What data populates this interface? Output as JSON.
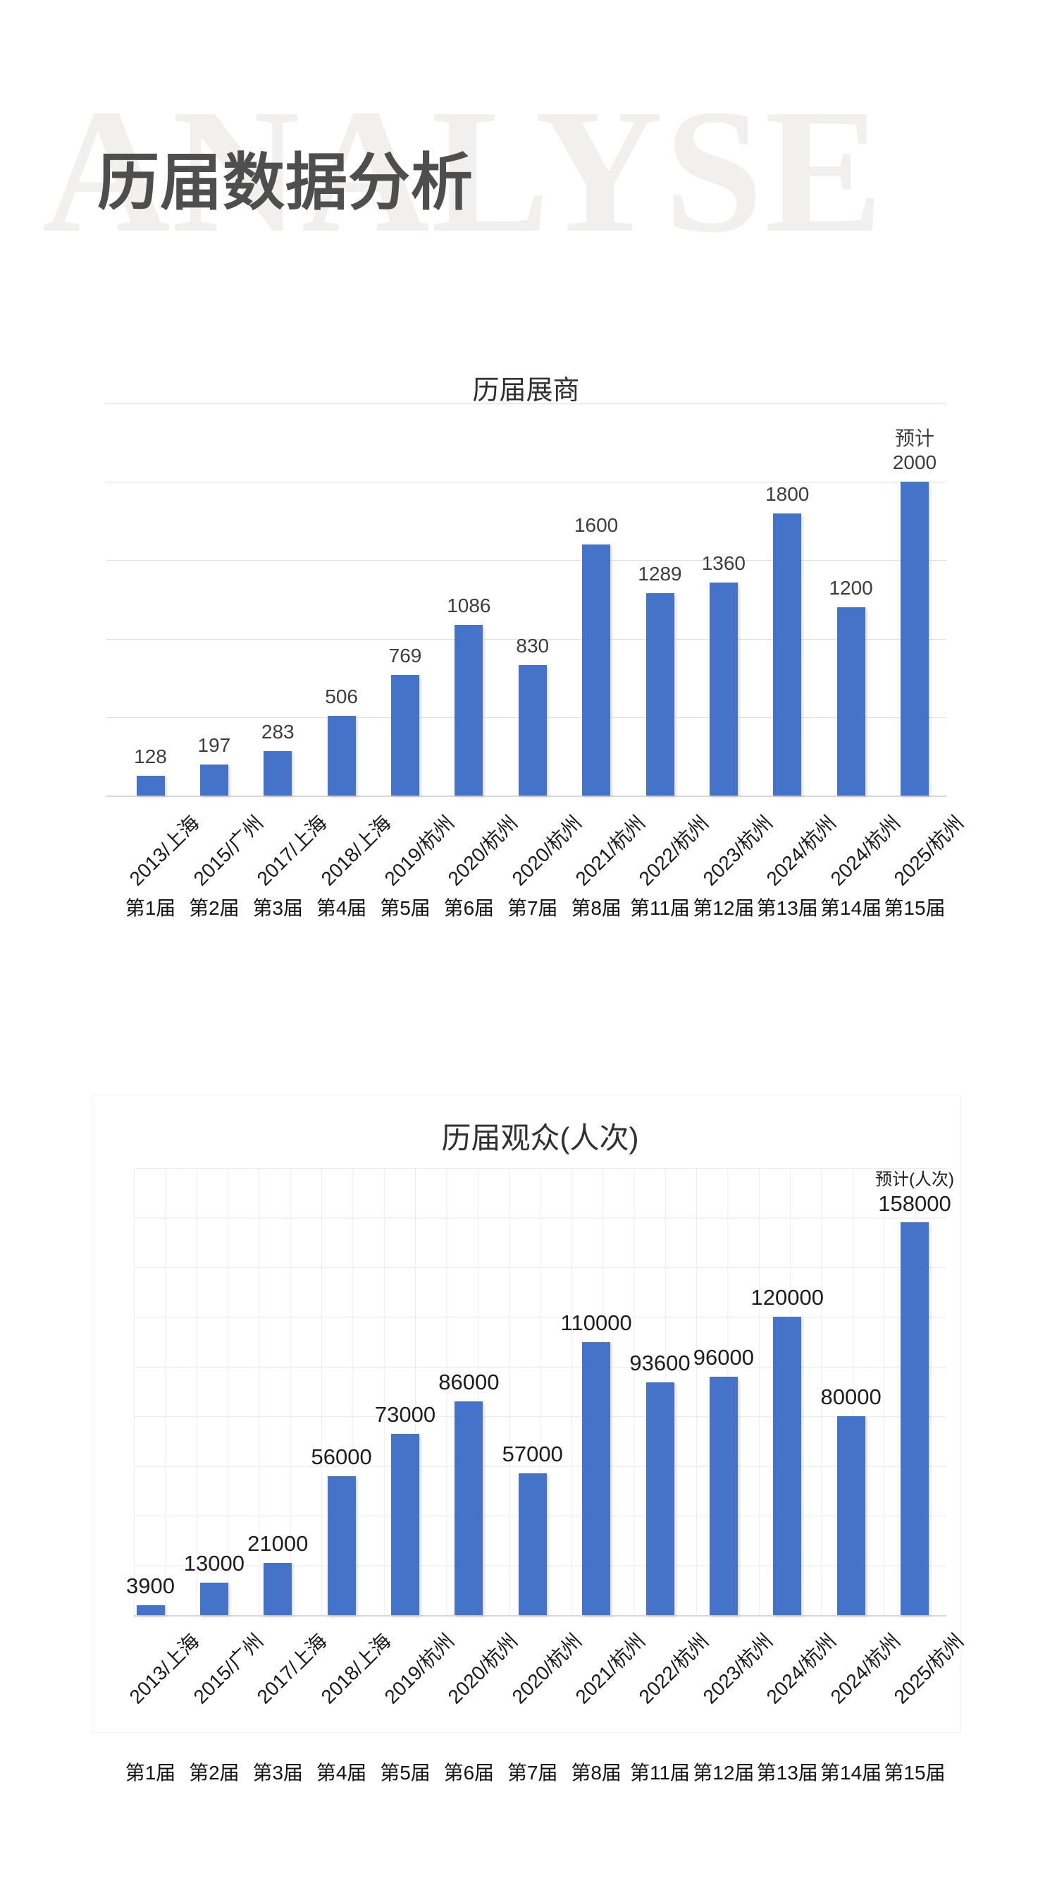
{
  "page": {
    "watermark": "ANALYSE",
    "title": "历届数据分析"
  },
  "chart_data": [
    {
      "type": "bar",
      "title": "历届展商",
      "legend": "none",
      "grid": "horizontal-only",
      "ylim": [
        0,
        2500
      ],
      "grid_step": 500,
      "bar_color": "#4573c9",
      "categories": [
        "第1届",
        "第2届",
        "第3届",
        "第4届",
        "第5届",
        "第6届",
        "第7届",
        "第8届",
        "第11届",
        "第12届",
        "第13届",
        "第14届",
        "第15届"
      ],
      "editions": [
        "2013/上海",
        "2015/广州",
        "2017/上海",
        "2018/上海",
        "2019/杭州",
        "2020/杭州",
        "2020/杭州",
        "2021/杭州",
        "2022/杭州",
        "2023/杭州",
        "2024/杭州",
        "2024/杭州",
        "2025/杭州"
      ],
      "values": [
        128,
        197,
        283,
        506,
        769,
        1086,
        830,
        1600,
        1289,
        1360,
        1800,
        1200,
        2000
      ],
      "data_labels": [
        [
          "128"
        ],
        [
          "197"
        ],
        [
          "283"
        ],
        [
          "506"
        ],
        [
          "769"
        ],
        [
          "1086"
        ],
        [
          "830"
        ],
        [
          "1600"
        ],
        [
          "1289"
        ],
        [
          "1360"
        ],
        [
          "1800"
        ],
        [
          "1200"
        ],
        [
          "预计",
          "2000"
        ]
      ]
    },
    {
      "type": "bar",
      "title": "历届观众(人次)",
      "legend": "none",
      "grid": "full",
      "ylim": [
        0,
        180000
      ],
      "grid_step": 20000,
      "bar_color": "#4573c9",
      "categories": [
        "第1届",
        "第2届",
        "第3届",
        "第4届",
        "第5届",
        "第6届",
        "第7届",
        "第8届",
        "第11届",
        "第12届",
        "第13届",
        "第14届",
        "第15届"
      ],
      "editions": [
        "2013/上海",
        "2015/广州",
        "2017/上海",
        "2018/上海",
        "2019/杭州",
        "2020/杭州",
        "2020/杭州",
        "2021/杭州",
        "2022/杭州",
        "2023/杭州",
        "2024/杭州",
        "2024/杭州",
        "2025/杭州"
      ],
      "values": [
        3900,
        13000,
        21000,
        56000,
        73000,
        86000,
        57000,
        110000,
        93600,
        96000,
        120000,
        80000,
        158000
      ],
      "data_labels": [
        [
          "3900"
        ],
        [
          "13000"
        ],
        [
          "21000"
        ],
        [
          "56000"
        ],
        [
          "73000"
        ],
        [
          "86000"
        ],
        [
          "57000"
        ],
        [
          "110000"
        ],
        [
          "93600"
        ],
        [
          "96000"
        ],
        [
          "120000"
        ],
        [
          "80000"
        ],
        [
          "预计(人次)",
          "158000"
        ]
      ]
    }
  ]
}
